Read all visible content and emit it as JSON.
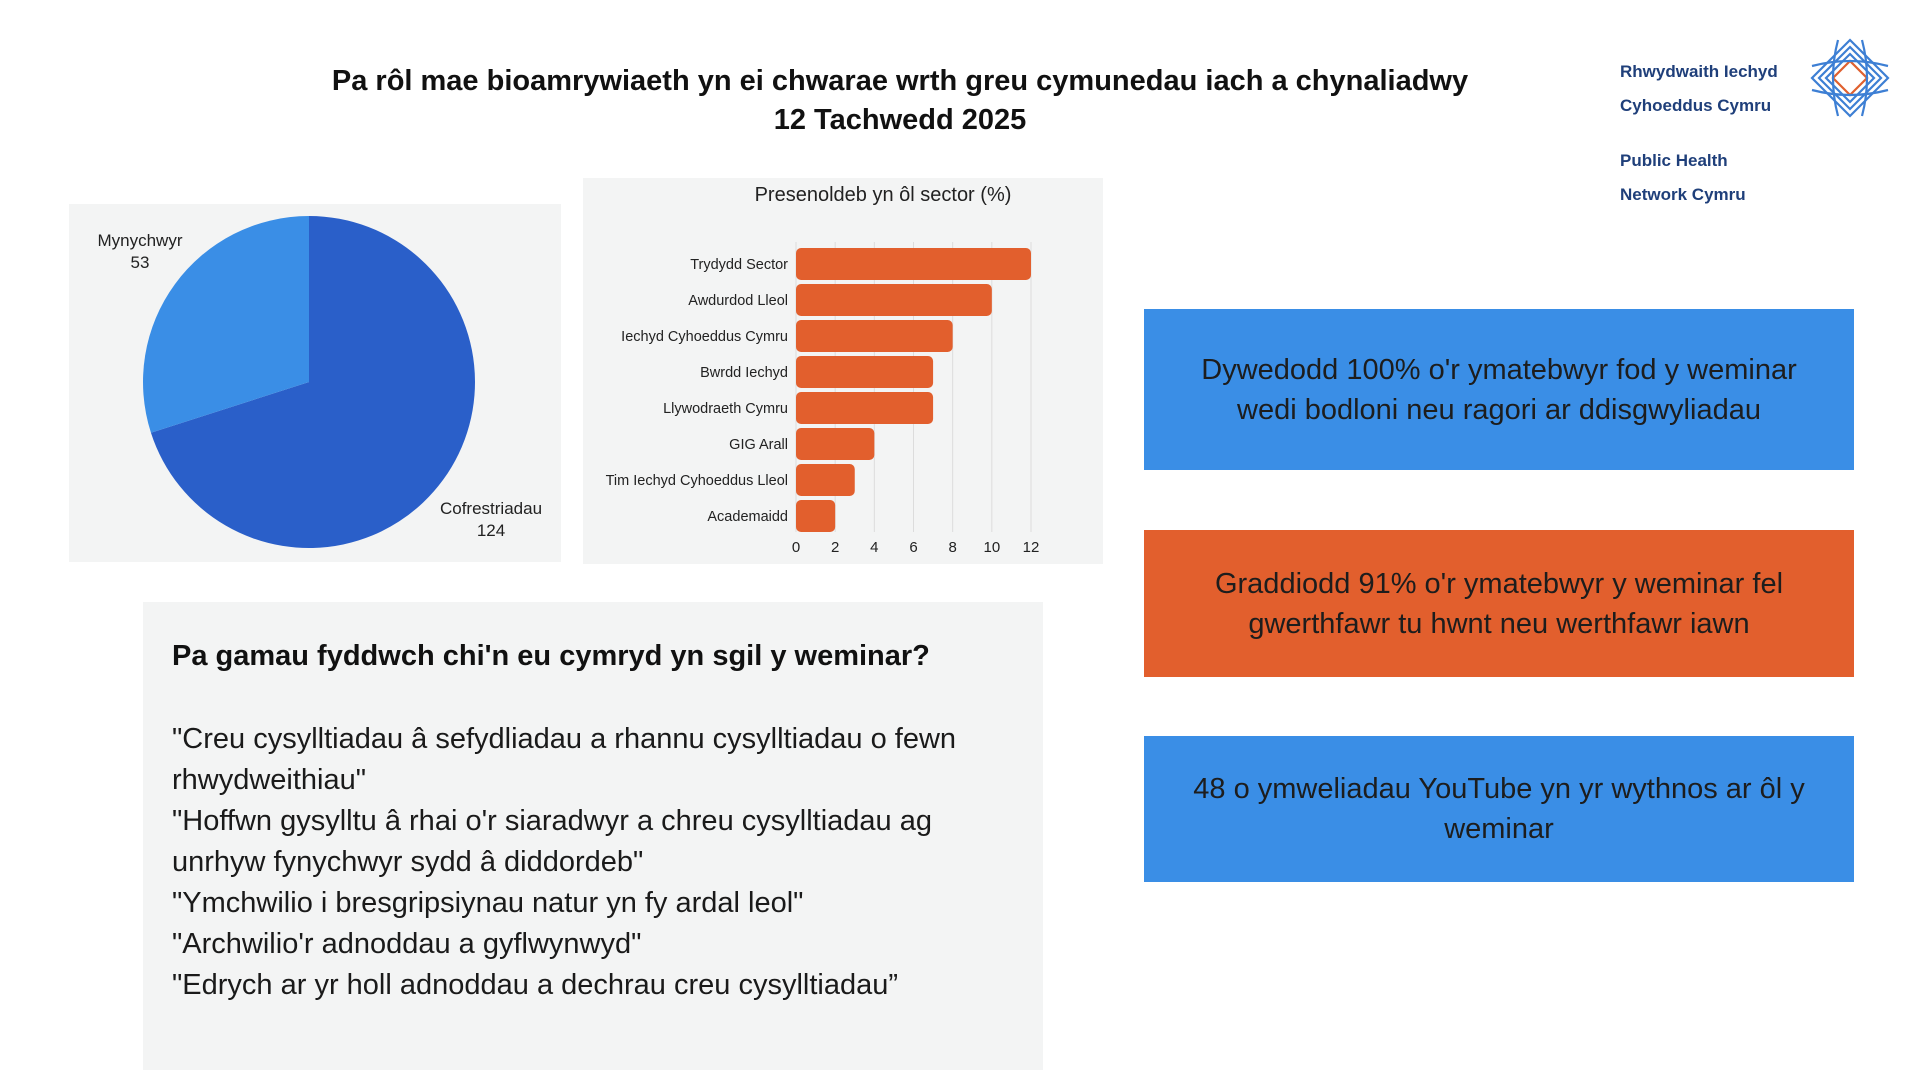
{
  "header": {
    "title_line1": "Pa rôl mae bioamrywiaeth yn ei chwarae wrth greu cymunedau iach a chynaliadwy",
    "title_line2": "12 Tachwedd 2025"
  },
  "logo": {
    "line1": "Rhwydwaith Iechyd",
    "line2": "Cyhoeddus Cymru",
    "line3": "Public Health",
    "line4": "Network Cymru",
    "colors": {
      "text": "#1f3f7a",
      "blue": "#3d7fd4",
      "orange": "#e0602e"
    }
  },
  "colors": {
    "pie_dark": "#2a5fc9",
    "pie_light": "#3a8ee6",
    "bar": "#e25f2d",
    "panel_bg": "#f3f4f4",
    "stat_blue": "#3a8ee6",
    "stat_orange": "#e25f2d"
  },
  "chart_data": [
    {
      "type": "pie",
      "title": "",
      "slices": [
        {
          "label": "Cofrestriadau",
          "value": 124,
          "value_label": "124",
          "color": "#2a5fc9"
        },
        {
          "label": "Mynychwyr",
          "value": 53,
          "value_label": "53",
          "color": "#3a8ee6"
        }
      ]
    },
    {
      "type": "bar",
      "orientation": "horizontal",
      "title": "Presenoldeb yn ôl sector (%)",
      "categories": [
        "Trydydd Sector",
        "Awdurdod Lleol",
        "Iechyd Cyhoeddus Cymru",
        "Bwrdd Iechyd",
        "Llywodraeth Cymru",
        "GIG Arall",
        "Tim Iechyd Cyhoeddus Lleol",
        "Academaidd"
      ],
      "values": [
        12,
        10,
        8,
        7,
        7,
        4,
        3,
        2
      ],
      "xlim": [
        0,
        12
      ],
      "xticks": [
        "0",
        "2",
        "4",
        "6",
        "8",
        "10",
        "12"
      ],
      "grid": true,
      "color": "#e25f2d"
    }
  ],
  "quotes": {
    "heading": "Pa gamau fyddwch chi'n eu cymryd yn sgil y weminar?",
    "items": [
      "\"Creu cysylltiadau â sefydliadau a rhannu cysylltiadau o fewn rhwydweithiau\"",
      "\"Hoffwn gysylltu â rhai o'r siaradwyr a chreu cysylltiadau ag unrhyw fynychwyr sydd â diddordeb\"",
      "\"Ymchwilio i bresgripsiynau natur yn fy ardal leol\"",
      "\"Archwilio'r adnoddau a gyflwynwyd\"",
      "\"Edrych ar yr holl adnoddau a dechrau creu cysylltiadau”"
    ]
  },
  "stats": [
    {
      "text": "Dywedodd 100% o'r ymatebwyr fod y weminar wedi bodloni neu ragori ar ddisgwyliadau",
      "color": "#3a8ee6"
    },
    {
      "text": "Graddiodd 91% o'r ymatebwyr y weminar fel gwerthfawr tu hwnt neu werthfawr iawn",
      "color": "#e25f2d"
    },
    {
      "text": "48 o ymweliadau YouTube yn yr wythnos ar ôl y weminar",
      "color": "#3a8ee6"
    }
  ]
}
